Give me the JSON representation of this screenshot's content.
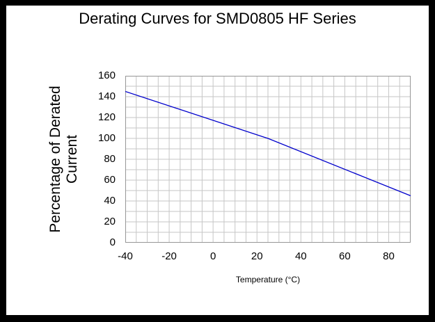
{
  "frame": {
    "border_color": "#000000",
    "background_color": "#ffffff"
  },
  "chart_data": {
    "type": "line",
    "title": "Derating Curves for SMD0805 HF Series",
    "xlabel": "Temperature (°C)",
    "ylabel": "Percentage of Derated Current",
    "xlim": [
      -40,
      90
    ],
    "ylim": [
      0,
      160
    ],
    "x_ticks": [
      -40,
      -20,
      0,
      20,
      40,
      60,
      80
    ],
    "y_ticks": [
      0,
      20,
      40,
      60,
      80,
      100,
      120,
      140,
      160
    ],
    "x_grid_step": 5,
    "y_grid_step": 10,
    "grid": true,
    "grid_color": "#c6c6c6",
    "plot_border_color": "#969696",
    "legend_position": "none",
    "series": [
      {
        "name": "derating-curve",
        "color": "#0000cc",
        "x": [
          -40,
          25,
          90
        ],
        "y": [
          145,
          100,
          45
        ]
      }
    ]
  }
}
